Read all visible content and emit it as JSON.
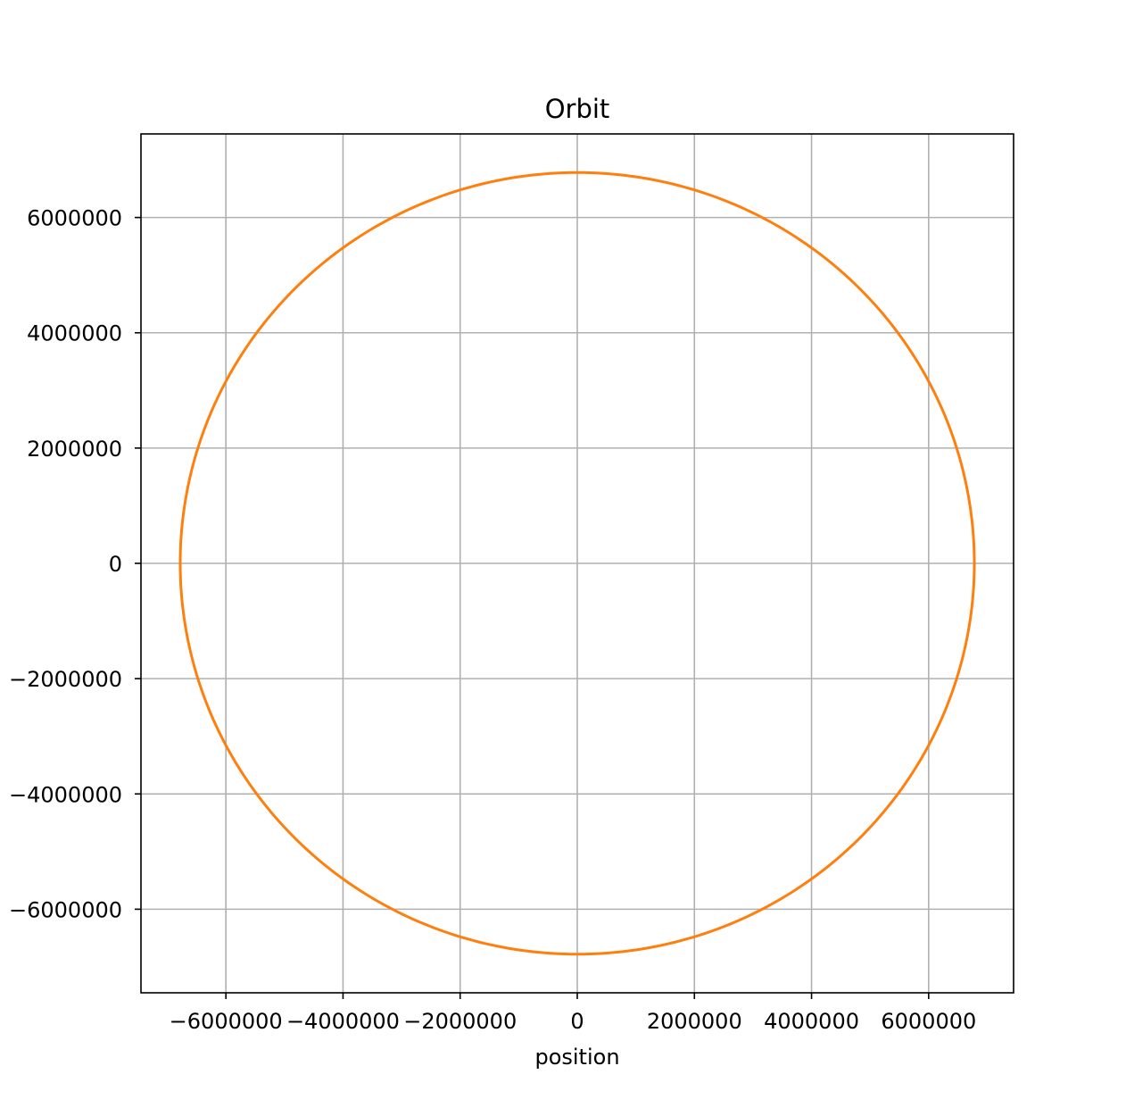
{
  "chart_data": {
    "type": "line",
    "title": "Orbit",
    "xlabel": "position",
    "ylabel": "",
    "xlim": [
      -7450000,
      7450000
    ],
    "ylim": [
      -7450000,
      7450000
    ],
    "xticks": [
      -6000000,
      -4000000,
      -2000000,
      0,
      2000000,
      4000000,
      6000000
    ],
    "yticks": [
      -6000000,
      -4000000,
      -2000000,
      0,
      2000000,
      4000000,
      6000000
    ],
    "xtick_labels": [
      "−6000000",
      "−4000000",
      "−2000000",
      "0",
      "2000000",
      "4000000",
      "6000000"
    ],
    "ytick_labels": [
      "−6000000",
      "−4000000",
      "−2000000",
      "0",
      "2000000",
      "4000000",
      "6000000"
    ],
    "grid": true,
    "series": [
      {
        "shape": "circle",
        "center": [
          0,
          0
        ],
        "radius": 6780000,
        "color": "#ff7f0e"
      }
    ]
  }
}
